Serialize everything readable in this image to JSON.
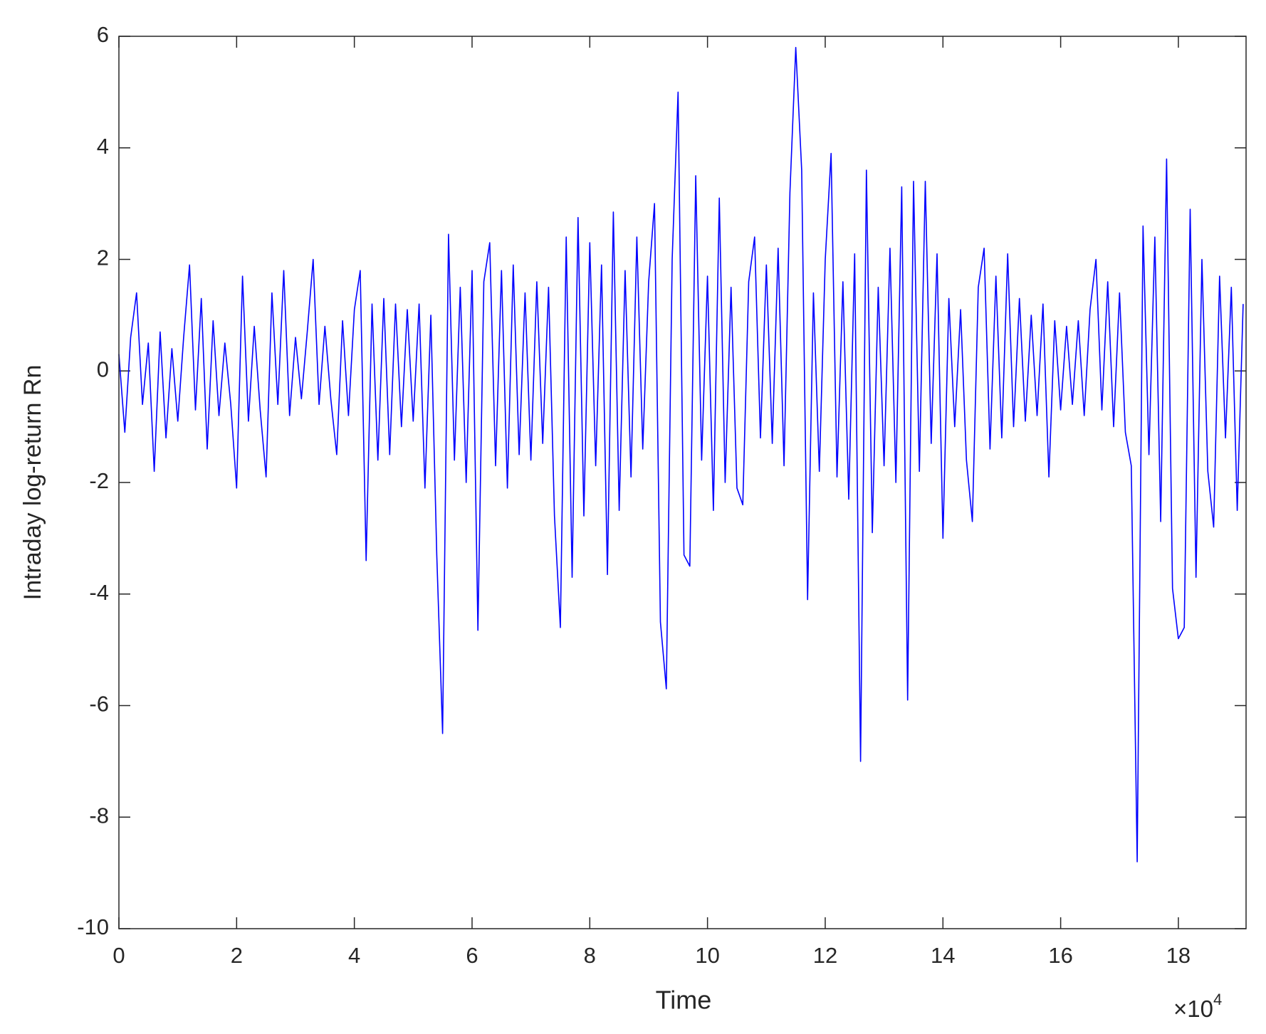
{
  "chart_data": {
    "type": "line",
    "xlabel": "Time",
    "ylabel": "Intraday log-return Rn",
    "x_multiplier": "×10",
    "x_multiplier_exponent": "4",
    "xlim": [
      0,
      19.15
    ],
    "xticks": [
      0,
      2,
      4,
      6,
      8,
      10,
      12,
      14,
      16,
      18
    ],
    "ylim": [
      -10,
      6
    ],
    "yticks": [
      -10,
      -8,
      -6,
      -4,
      -2,
      0,
      2,
      4,
      6
    ],
    "grid": false,
    "x": [
      0,
      0.1,
      0.2,
      0.3,
      0.4,
      0.5,
      0.6,
      0.7,
      0.8,
      0.9,
      1,
      1.1,
      1.2,
      1.3,
      1.4,
      1.5,
      1.6,
      1.7,
      1.8,
      1.9,
      2,
      2.1,
      2.2,
      2.3,
      2.4,
      2.5,
      2.6,
      2.7,
      2.8,
      2.9,
      3,
      3.1,
      3.2,
      3.3,
      3.4,
      3.5,
      3.6,
      3.7,
      3.8,
      3.9,
      4,
      4.1,
      4.2,
      4.3,
      4.4,
      4.5,
      4.6,
      4.7,
      4.8,
      4.9,
      5,
      5.1,
      5.2,
      5.3,
      5.4,
      5.5,
      5.6,
      5.7,
      5.8,
      5.9,
      6,
      6.1,
      6.2,
      6.3,
      6.4,
      6.5,
      6.6,
      6.7,
      6.8,
      6.9,
      7,
      7.1,
      7.2,
      7.3,
      7.4,
      7.5,
      7.6,
      7.7,
      7.8,
      7.9,
      8,
      8.1,
      8.2,
      8.3,
      8.4,
      8.5,
      8.6,
      8.7,
      8.8,
      8.9,
      9,
      9.1,
      9.2,
      9.3,
      9.4,
      9.5,
      9.6,
      9.7,
      9.8,
      9.9,
      10,
      10.1,
      10.2,
      10.3,
      10.4,
      10.5,
      10.6,
      10.7,
      10.8,
      10.9,
      11,
      11.1,
      11.2,
      11.3,
      11.4,
      11.5,
      11.6,
      11.7,
      11.8,
      11.9,
      12,
      12.1,
      12.2,
      12.3,
      12.4,
      12.5,
      12.6,
      12.7,
      12.8,
      12.9,
      13,
      13.1,
      13.2,
      13.3,
      13.4,
      13.5,
      13.6,
      13.7,
      13.8,
      13.9,
      14,
      14.1,
      14.2,
      14.3,
      14.4,
      14.5,
      14.6,
      14.7,
      14.8,
      14.9,
      15,
      15.1,
      15.2,
      15.3,
      15.4,
      15.5,
      15.6,
      15.7,
      15.8,
      15.9,
      16,
      16.1,
      16.2,
      16.3,
      16.4,
      16.5,
      16.6,
      16.7,
      16.8,
      16.9,
      17,
      17.1,
      17.2,
      17.3,
      17.4,
      17.5,
      17.6,
      17.7,
      17.8,
      17.9,
      18,
      18.1,
      18.2,
      18.3,
      18.4,
      18.5,
      18.6,
      18.7,
      18.8,
      18.9,
      19,
      19.1
    ],
    "series": [
      {
        "name": "Rn",
        "color": "#0000ff",
        "values": [
          0.3,
          -1.1,
          0.6,
          1.4,
          -0.6,
          0.5,
          -1.8,
          0.7,
          -1.2,
          0.4,
          -0.9,
          0.6,
          1.9,
          -0.7,
          1.3,
          -1.4,
          0.9,
          -0.8,
          0.5,
          -0.6,
          -2.1,
          1.7,
          -0.9,
          0.8,
          -0.7,
          -1.9,
          1.4,
          -0.6,
          1.8,
          -0.8,
          0.6,
          -0.5,
          0.7,
          2.0,
          -0.6,
          0.8,
          -0.5,
          -1.5,
          0.9,
          -0.8,
          1.1,
          1.8,
          -3.4,
          1.2,
          -1.6,
          1.3,
          -1.5,
          1.2,
          -1.0,
          1.1,
          -0.9,
          1.2,
          -2.1,
          1.0,
          -3.3,
          -6.5,
          2.45,
          -1.6,
          1.5,
          -2.0,
          1.8,
          -4.65,
          1.6,
          2.3,
          -1.7,
          1.8,
          -2.1,
          1.9,
          -1.5,
          1.4,
          -1.6,
          1.6,
          -1.3,
          1.5,
          -2.6,
          -4.6,
          2.4,
          -3.7,
          2.75,
          -2.6,
          2.3,
          -1.7,
          1.9,
          -3.65,
          2.85,
          -2.5,
          1.8,
          -1.9,
          2.4,
          -1.4,
          1.6,
          3.0,
          -4.5,
          -5.7,
          2.0,
          5.0,
          -3.3,
          -3.5,
          3.5,
          -1.6,
          1.7,
          -2.5,
          3.1,
          -2.0,
          1.5,
          -2.1,
          -2.4,
          1.6,
          2.4,
          -1.2,
          1.9,
          -1.3,
          2.2,
          -1.7,
          3.2,
          5.8,
          3.6,
          -4.1,
          1.4,
          -1.8,
          2.0,
          3.9,
          -1.9,
          1.6,
          -2.3,
          2.1,
          -7.0,
          3.6,
          -2.9,
          1.5,
          -1.7,
          2.2,
          -2.0,
          3.3,
          -5.9,
          3.4,
          -1.8,
          3.4,
          -1.3,
          2.1,
          -3.0,
          1.3,
          -1.0,
          1.1,
          -1.6,
          -2.7,
          1.5,
          2.2,
          -1.4,
          1.7,
          -1.2,
          2.1,
          -1.0,
          1.3,
          -0.9,
          1.0,
          -0.8,
          1.2,
          -1.9,
          0.9,
          -0.7,
          0.8,
          -0.6,
          0.9,
          -0.8,
          1.1,
          2.0,
          -0.7,
          1.6,
          -1.0,
          1.4,
          -1.1,
          -1.7,
          -8.8,
          2.6,
          -1.5,
          2.4,
          -2.7,
          3.8,
          -3.9,
          -4.8,
          -4.6,
          2.9,
          -3.7,
          2.0,
          -1.8,
          -2.8,
          1.7,
          -1.2,
          1.5,
          -2.5,
          1.2
        ]
      }
    ]
  }
}
